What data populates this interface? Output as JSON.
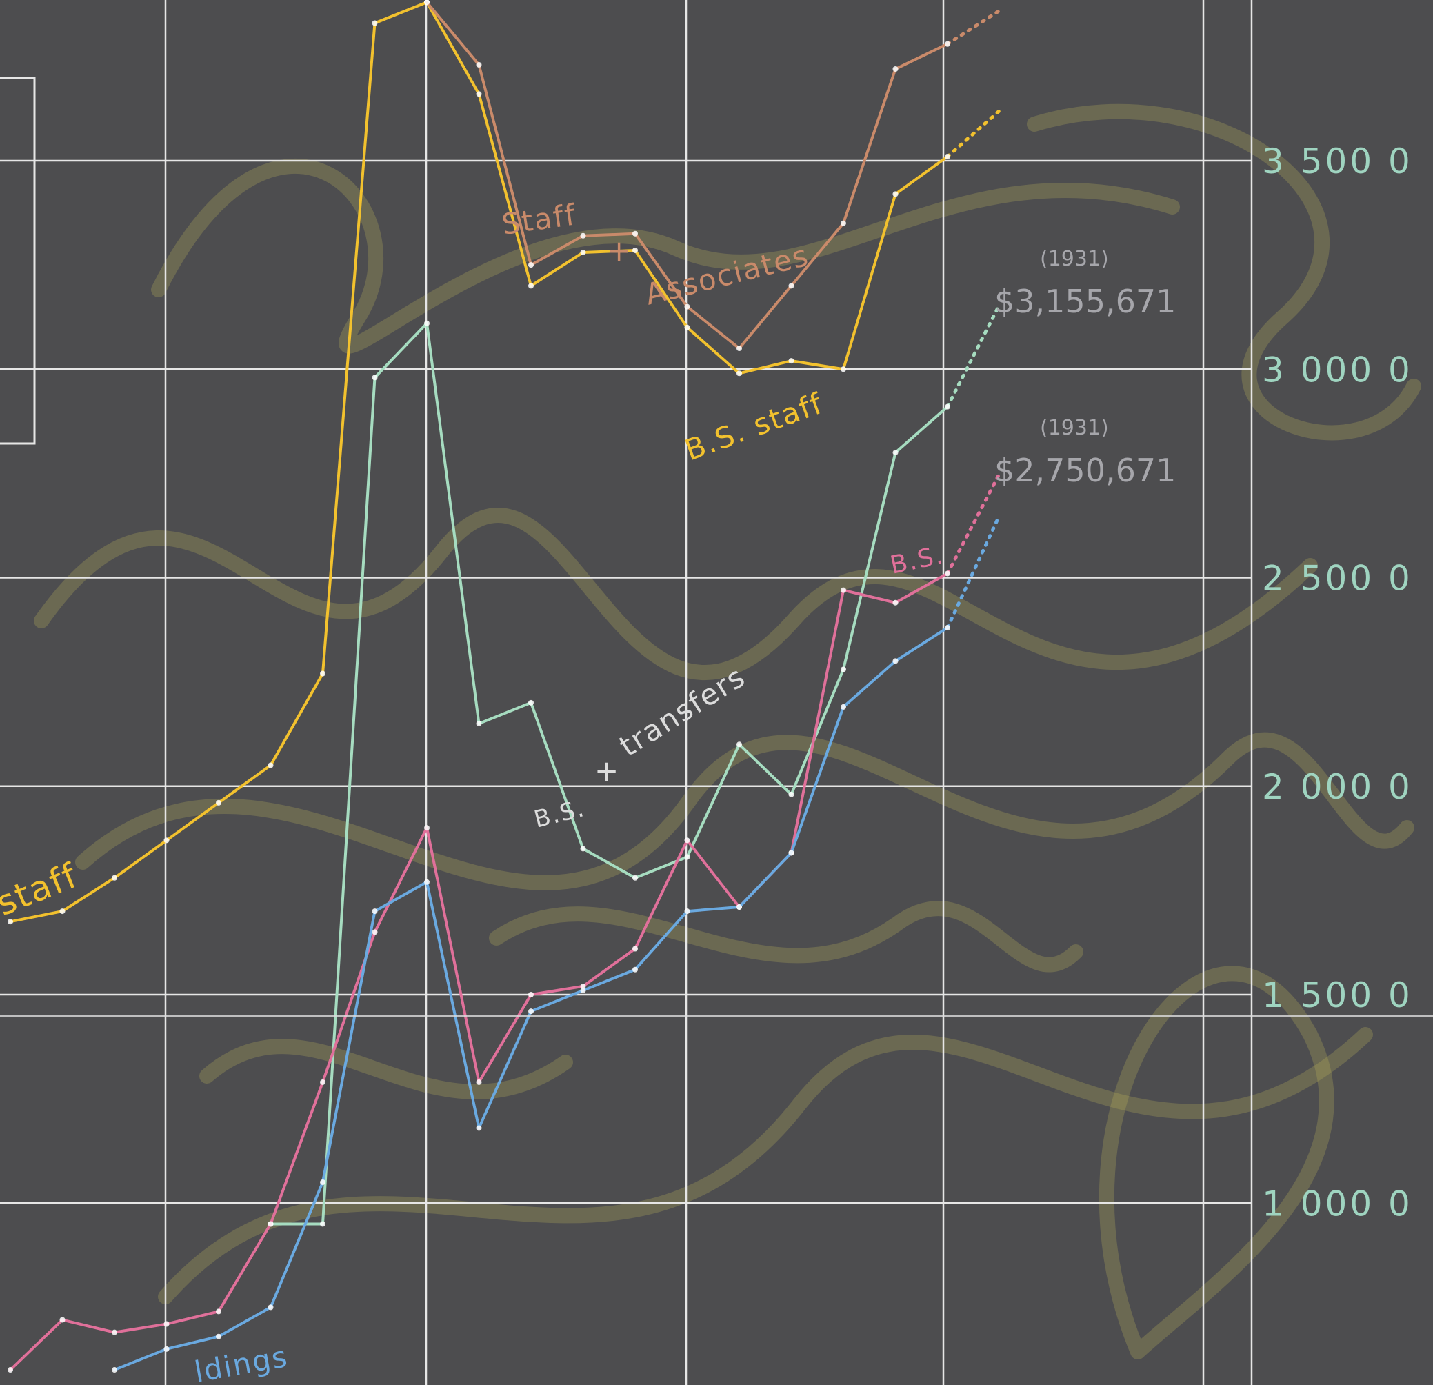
{
  "chart_data": {
    "type": "line",
    "title": "",
    "xlabel": "",
    "ylabel": "",
    "ylim": [
      600,
      3900
    ],
    "y_ticks": [
      {
        "value": 3500,
        "label": "3 500 0"
      },
      {
        "value": 3000,
        "label": "3 000 0"
      },
      {
        "value": 2500,
        "label": "2 500 0"
      },
      {
        "value": 2000,
        "label": "2 000 0"
      },
      {
        "value": 1500,
        "label": "1 500 0"
      },
      {
        "value": 1000,
        "label": "1 000 0"
      }
    ],
    "grid": true,
    "colors": {
      "background": "#4d4d4f",
      "grid": "#e6e6e6",
      "staff": "#f2c12e",
      "staff_associates": "#c98a6a",
      "bs_transfers": "#a6dcc0",
      "bs": "#e0709a",
      "holdings": "#6aa9e0",
      "annotation": "#a6a6ab",
      "scribble": "#b9b45a"
    },
    "series": [
      {
        "name": "staff",
        "color_key": "staff",
        "x": [
          0,
          1,
          2,
          3,
          4,
          5,
          6,
          7,
          8,
          9,
          10,
          11,
          12,
          13,
          14,
          15,
          16,
          17,
          18
        ],
        "values": [
          1675,
          1700,
          1780,
          1870,
          1960,
          2050,
          2270,
          3830,
          3880,
          3660,
          3200,
          3280,
          3285,
          3100,
          2990,
          3020,
          3000,
          3420,
          3510
        ],
        "projection": {
          "x": [
            18,
            19
          ],
          "values": [
            3510,
            3620
          ]
        }
      },
      {
        "name": "Staff + Associates",
        "color_key": "staff_associates",
        "x": [
          8,
          9,
          10,
          11,
          12,
          13,
          14,
          15,
          16,
          17,
          18
        ],
        "values": [
          3880,
          3730,
          3250,
          3320,
          3325,
          3150,
          3050,
          3200,
          3350,
          3720,
          3780
        ],
        "projection": {
          "x": [
            18,
            19
          ],
          "values": [
            3780,
            3860
          ]
        }
      },
      {
        "name": "B.S. + transfers",
        "color_key": "bs_transfers",
        "x": [
          5,
          6,
          7,
          8,
          9,
          10,
          11,
          12,
          13,
          14,
          15,
          16,
          17,
          18
        ],
        "values": [
          950,
          950,
          2980,
          3110,
          2150,
          2200,
          1850,
          1780,
          1830,
          2100,
          1980,
          2280,
          2800,
          2910
        ],
        "projection": {
          "x": [
            18,
            19
          ],
          "values": [
            2910,
            3155
          ]
        }
      },
      {
        "name": "B.S.",
        "color_key": "bs",
        "x": [
          0,
          1,
          2,
          3,
          4,
          5,
          6,
          7,
          8,
          9,
          10,
          11,
          12,
          13,
          14,
          15,
          16,
          17,
          18
        ],
        "values": [
          600,
          720,
          690,
          710,
          740,
          950,
          1290,
          1650,
          1900,
          1290,
          1500,
          1520,
          1610,
          1870,
          1710,
          1840,
          2470,
          2440,
          2510
        ],
        "projection": {
          "x": [
            18,
            19
          ],
          "values": [
            2510,
            2750
          ]
        }
      },
      {
        "name": "Holdings",
        "color_key": "holdings",
        "x": [
          2,
          3,
          4,
          5,
          6,
          7,
          8,
          9,
          10,
          11,
          12,
          13,
          14,
          15,
          16,
          17,
          18
        ],
        "values": [
          600,
          650,
          680,
          750,
          1050,
          1700,
          1770,
          1180,
          1460,
          1510,
          1560,
          1700,
          1710,
          1840,
          2190,
          2300,
          2380
        ],
        "projection": {
          "x": [
            18,
            19
          ],
          "values": [
            2380,
            2650
          ]
        }
      }
    ],
    "labels": {
      "staff": "staff",
      "staff_associates_1": "Staff",
      "staff_associates_plus": "+",
      "staff_associates_2": "Associates",
      "bs_staff": "B.S. staff",
      "bs_transfers_1": "B.S.",
      "bs_transfers_plus": "+",
      "bs_transfers_2": "transfers",
      "bs": "B.S.",
      "holdings": "ldings"
    },
    "annotations": [
      {
        "year": "(1931)",
        "amount": "$3,155,671"
      },
      {
        "year": "(1931)",
        "amount": "$2,750,671"
      }
    ]
  }
}
